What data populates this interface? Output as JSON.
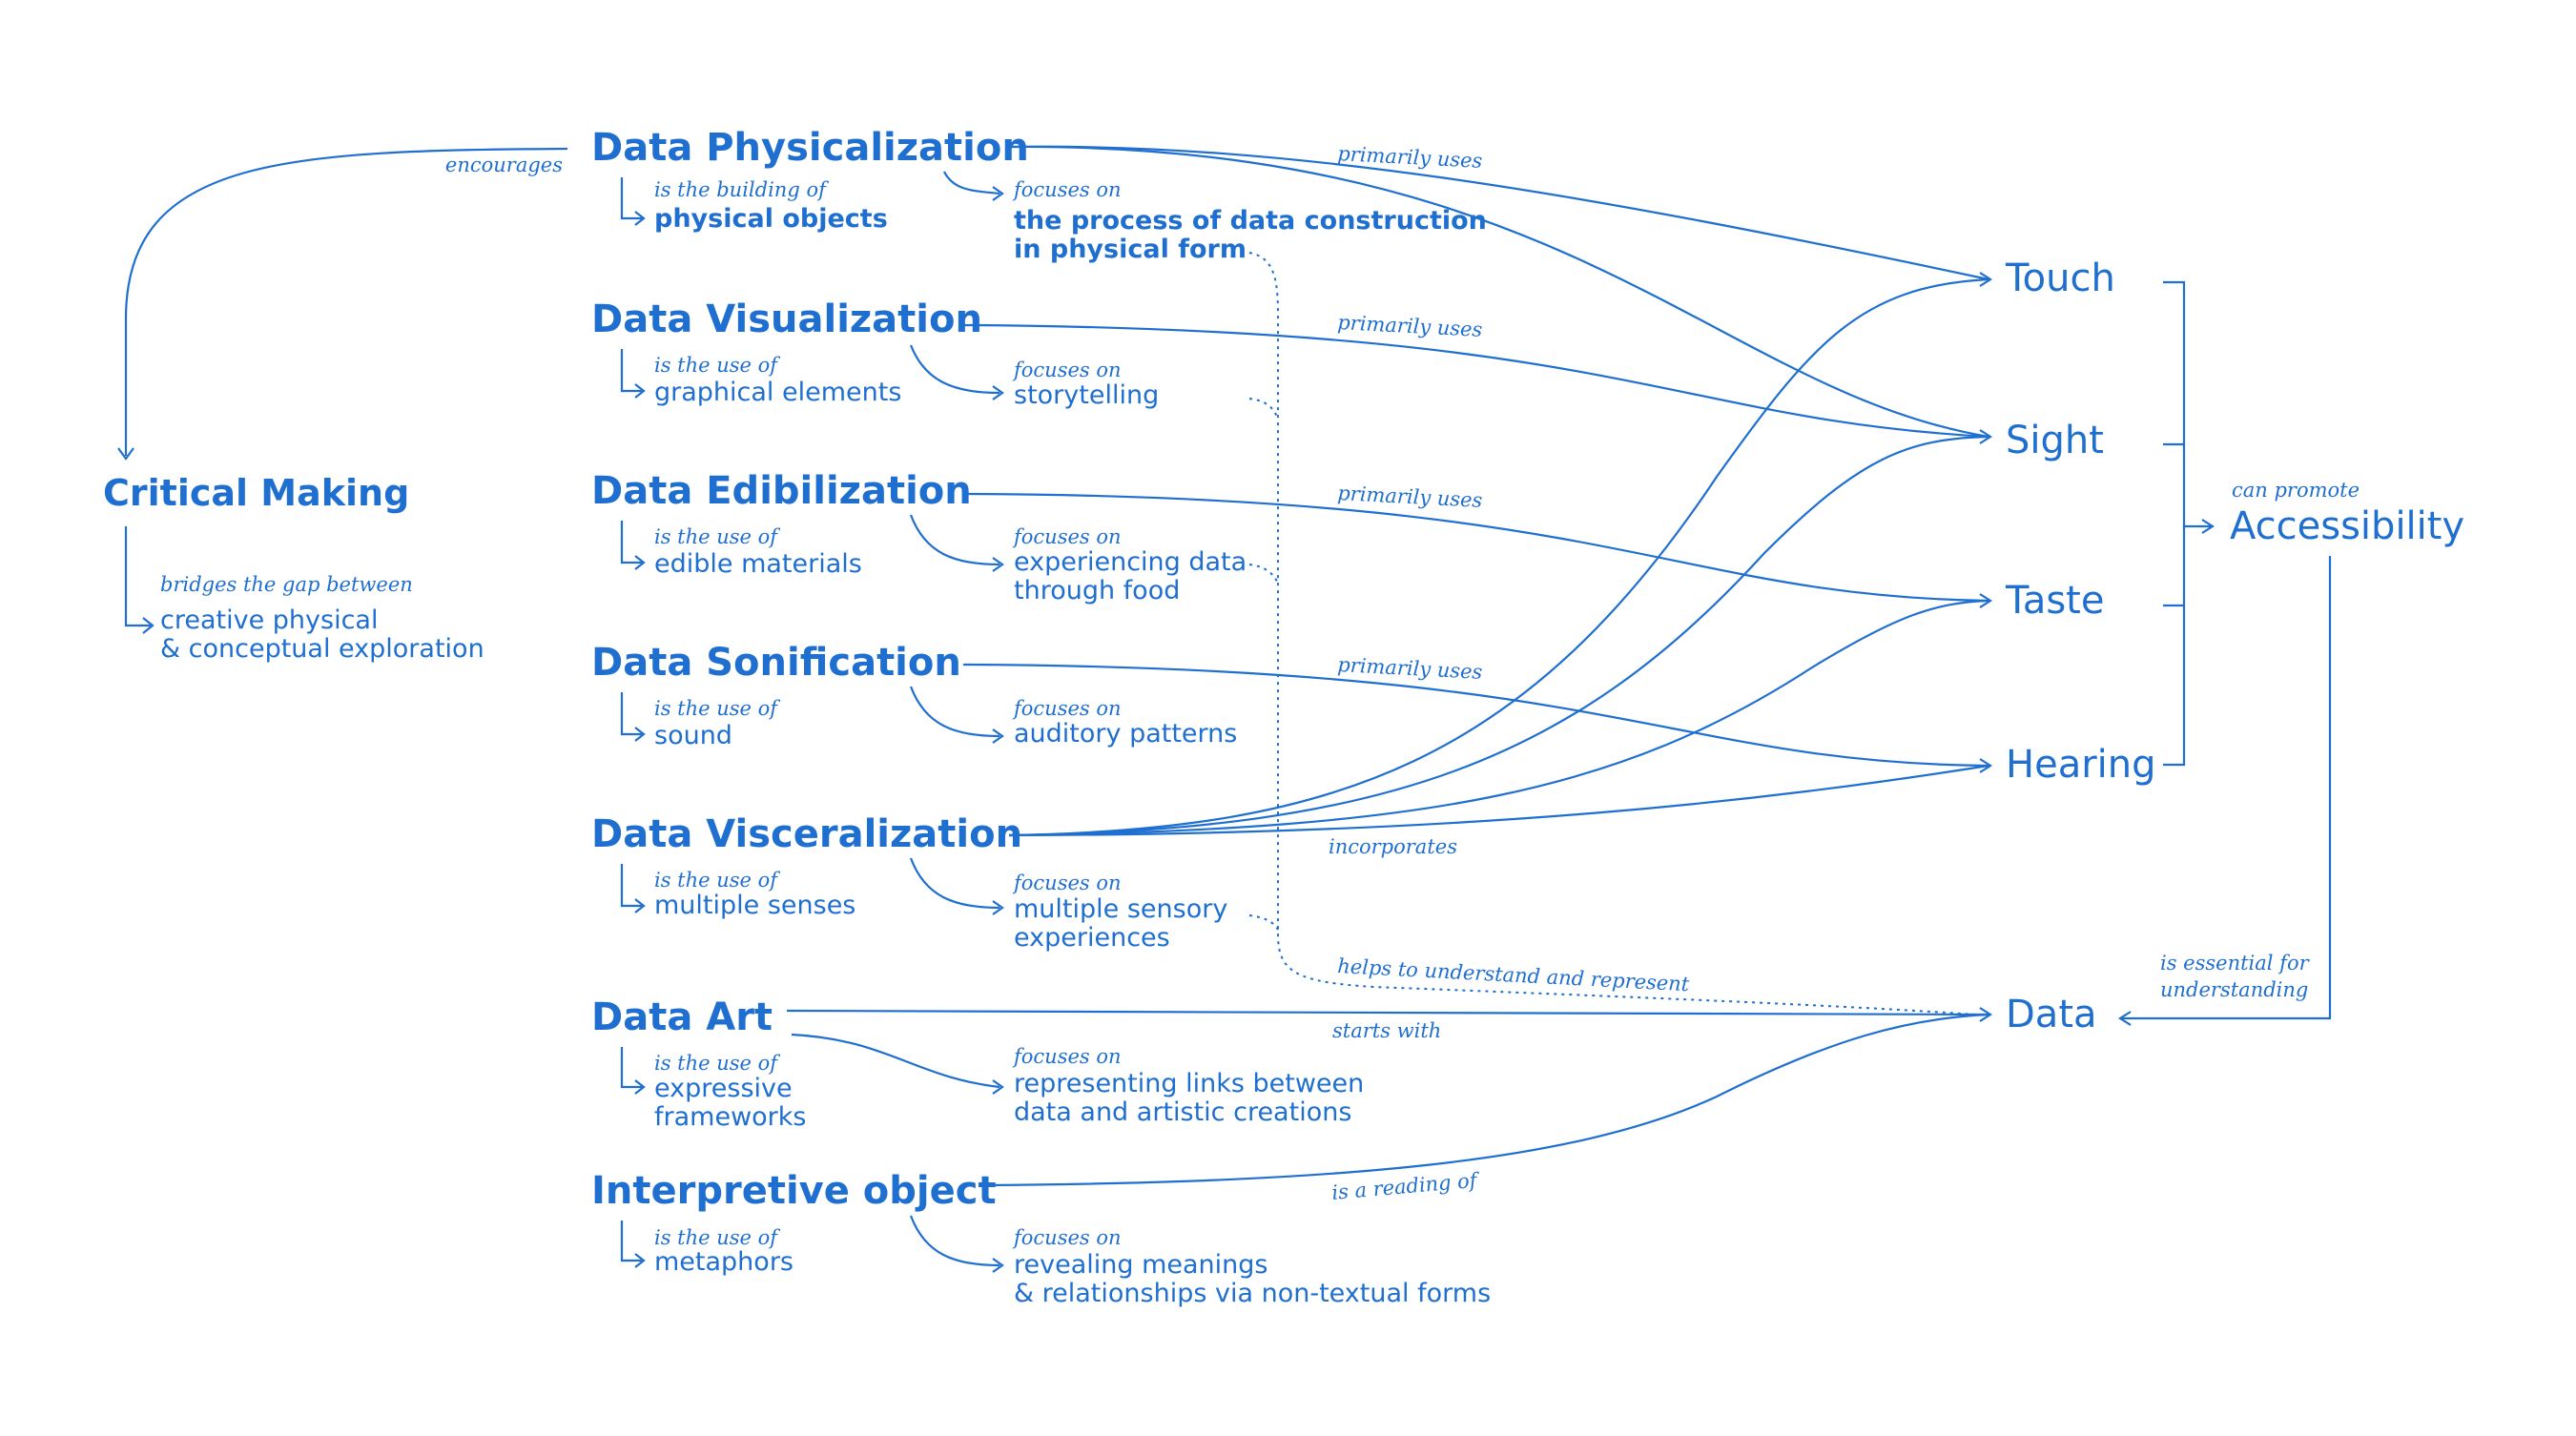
{
  "critical_making": {
    "title": "Critical Making",
    "encourages_label": "encourages",
    "bridges_label": "bridges the gap between",
    "bridges_text": [
      "creative physical",
      "& conceptual exploration"
    ]
  },
  "practices": [
    {
      "title": "Data Physicalization",
      "relation": "is the building of",
      "relation_text": [
        "physical objects"
      ],
      "focus_label": "focuses on",
      "focus_text": [
        "the process of data construction",
        "in physical form"
      ],
      "edge_label": "primarily uses"
    },
    {
      "title": "Data Visualization",
      "relation": "is the use of",
      "relation_text": [
        "graphical elements"
      ],
      "focus_label": "focuses on",
      "focus_text": [
        "storytelling"
      ],
      "edge_label": "primarily uses"
    },
    {
      "title": "Data Edibilization",
      "relation": "is the use of",
      "relation_text": [
        "edible materials"
      ],
      "focus_label": "focuses on",
      "focus_text": [
        "experiencing data",
        "through food"
      ],
      "edge_label": "primarily uses"
    },
    {
      "title": "Data Sonification",
      "relation": "is the use of",
      "relation_text": [
        "sound"
      ],
      "focus_label": "focuses on",
      "focus_text": [
        "auditory patterns"
      ],
      "edge_label": "primarily uses"
    },
    {
      "title": "Data Visceralization",
      "relation": "is the use of",
      "relation_text": [
        "multiple senses"
      ],
      "focus_label": "focuses on",
      "focus_text": [
        "multiple sensory",
        "experiences"
      ],
      "edge_label": "incorporates"
    },
    {
      "title": "Data Art",
      "relation": "is the use of",
      "relation_text": [
        "expressive",
        "frameworks"
      ],
      "focus_label": "focuses on",
      "focus_text": [
        "representing links between",
        "data and artistic creations"
      ],
      "edge_label": "starts with"
    },
    {
      "title": "Interpretive object",
      "relation": "is the use of",
      "relation_text": [
        "metaphors"
      ],
      "focus_label": "focuses on",
      "focus_text": [
        "revealing meanings",
        "& relationships via non-textual forms"
      ],
      "edge_label": "is a reading of"
    }
  ],
  "senses": [
    "Touch",
    "Sight",
    "Taste",
    "Hearing"
  ],
  "accessibility": {
    "title": "Accessibility",
    "label": "can promote"
  },
  "data_node": {
    "title": "Data",
    "essential_label": [
      "is essential for",
      "understanding"
    ]
  },
  "helps_label": "helps to understand and represent"
}
